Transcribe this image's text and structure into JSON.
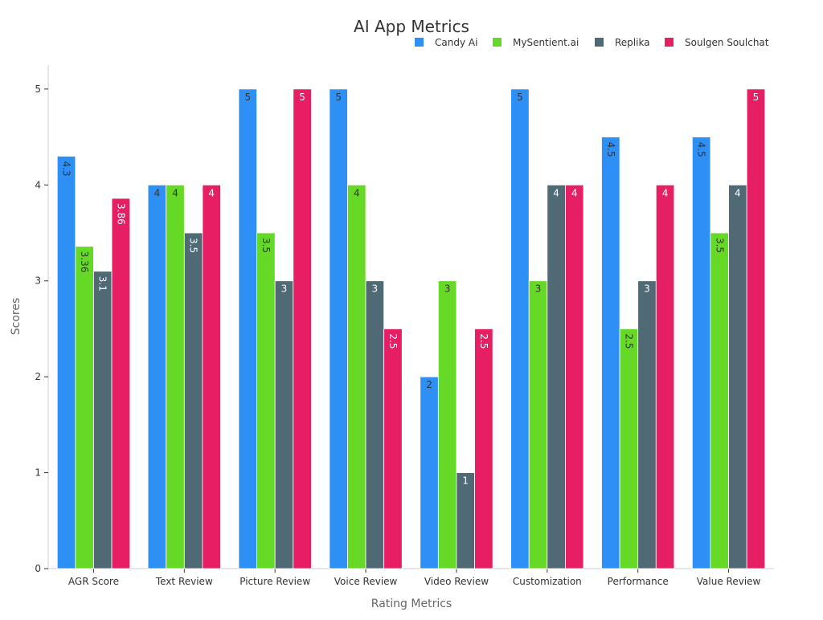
{
  "chart_data": {
    "type": "bar",
    "title": "AI App Metrics",
    "xlabel": "Rating Metrics",
    "ylabel": "Scores",
    "ylim": [
      0,
      5.25
    ],
    "yticks": [
      0,
      1,
      2,
      3,
      4,
      5
    ],
    "legend_position": "top-right",
    "grid": false,
    "categories": [
      "AGR Score",
      "Text Review",
      "Picture Review",
      "Voice Review",
      "Video Review",
      "Customization",
      "Performance",
      "Value Review"
    ],
    "series": [
      {
        "name": "Candy Ai",
        "color": "#2E90F5",
        "values": [
          4.3,
          4,
          5,
          5,
          2,
          5,
          4.5,
          4.5
        ],
        "labels": [
          "4.3",
          "4",
          "5",
          "5",
          "2",
          "5",
          "4.5",
          "4.5"
        ]
      },
      {
        "name": "MySentient.ai",
        "color": "#66D926",
        "values": [
          3.36,
          4,
          3.5,
          4,
          3,
          3,
          2.5,
          3.5
        ],
        "labels": [
          "3.36",
          "4",
          "3.5",
          "4",
          "3",
          "3",
          "2.5",
          "3.5"
        ]
      },
      {
        "name": "Replika",
        "color": "#4F6A75",
        "values": [
          3.1,
          3.5,
          3,
          3,
          1,
          4,
          3,
          4
        ],
        "labels": [
          "3.1",
          "3.5",
          "3",
          "3",
          "1",
          "4",
          "3",
          "4"
        ]
      },
      {
        "name": "Soulgen Soulchat",
        "color": "#E61E64",
        "values": [
          3.86,
          4,
          5,
          2.5,
          2.5,
          4,
          4,
          5
        ],
        "labels": [
          "3.86",
          "4",
          "5",
          "2.5",
          "2.5",
          "4",
          "4",
          "5"
        ]
      }
    ]
  }
}
